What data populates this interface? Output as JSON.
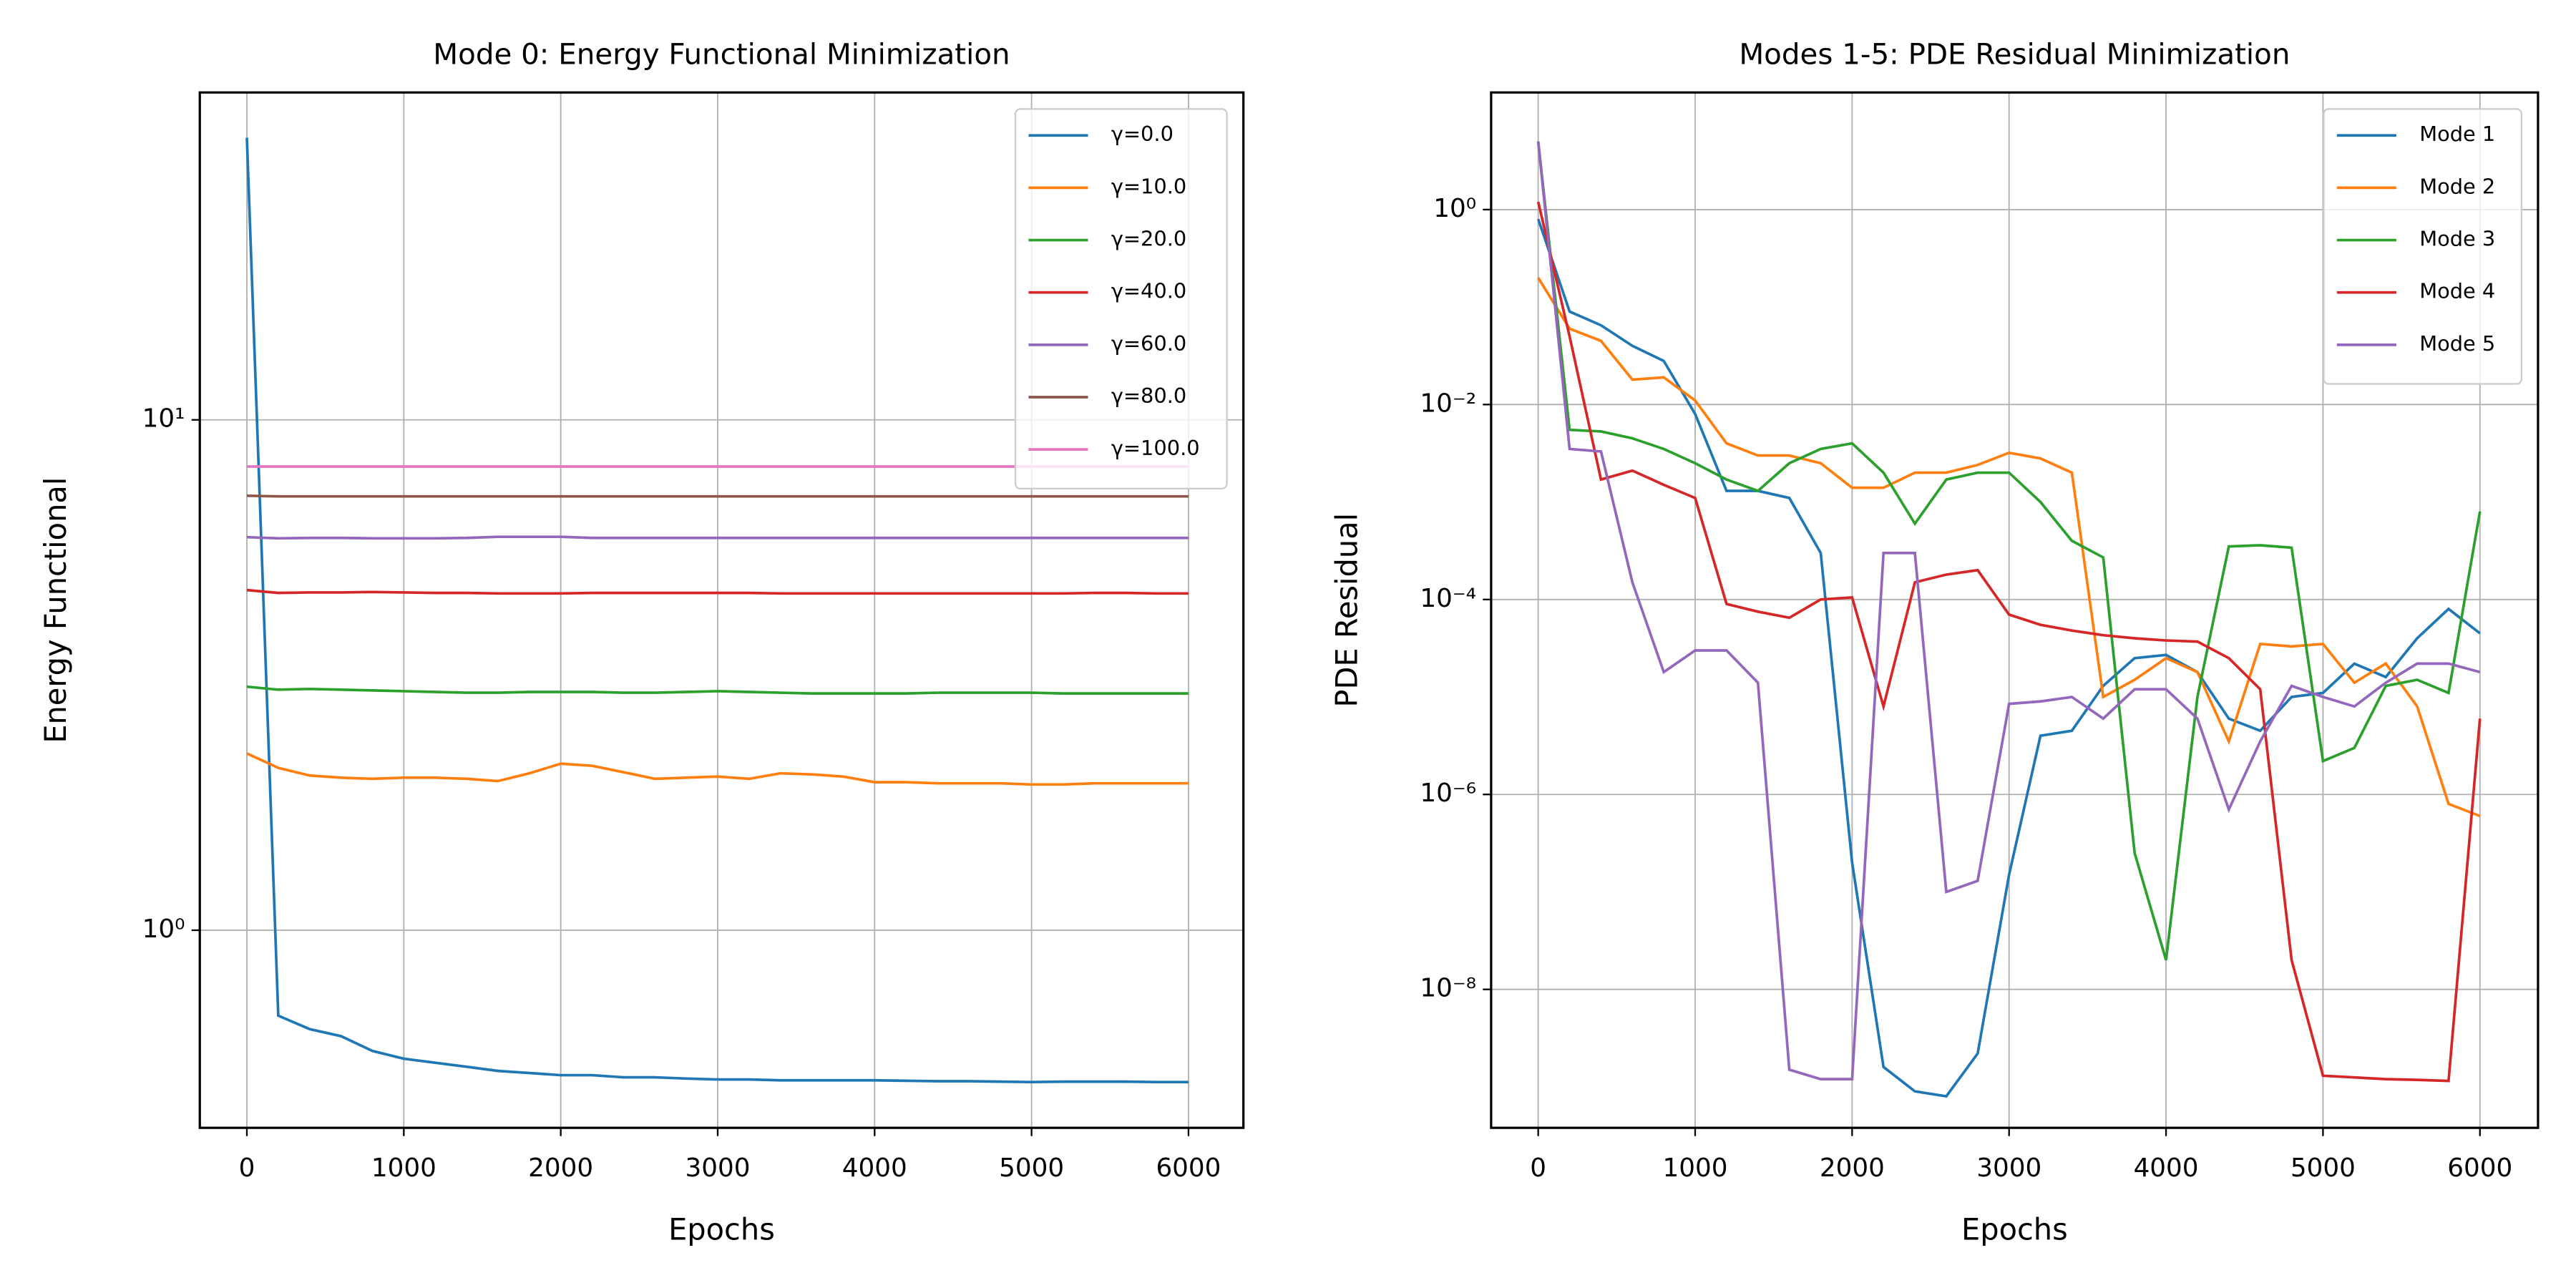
{
  "chart_data": [
    {
      "type": "line",
      "title": "Mode 0: Energy Functional Minimization",
      "xlabel": "Epochs",
      "ylabel": "Energy Functional",
      "log_y": true,
      "grid": true,
      "legend": "upper right",
      "xlim": [
        -300,
        6350
      ],
      "xticks": [
        0,
        1000,
        2000,
        3000,
        4000,
        5000,
        6000
      ],
      "ylim": [
        0.41,
        43.8
      ],
      "yticks": [
        {
          "value": 1,
          "label": "10⁰"
        },
        {
          "value": 10,
          "label": "10¹"
        }
      ],
      "x": [
        0,
        200,
        400,
        600,
        800,
        1000,
        1200,
        1400,
        1600,
        1800,
        2000,
        2200,
        2400,
        2600,
        2800,
        3000,
        3200,
        3400,
        3600,
        3800,
        4000,
        4200,
        4400,
        4600,
        4800,
        5000,
        5200,
        5400,
        5600,
        5800,
        6000
      ],
      "series": [
        {
          "name": "γ=0.0",
          "color": "#1f77b4",
          "values": [
            35.7,
            0.68,
            0.64,
            0.62,
            0.58,
            0.56,
            0.55,
            0.54,
            0.53,
            0.525,
            0.52,
            0.52,
            0.515,
            0.515,
            0.512,
            0.51,
            0.51,
            0.508,
            0.508,
            0.508,
            0.508,
            0.507,
            0.506,
            0.506,
            0.505,
            0.504,
            0.505,
            0.505,
            0.505,
            0.504,
            0.504
          ]
        },
        {
          "name": "γ=10.0",
          "color": "#ff7f0e",
          "values": [
            2.22,
            2.08,
            2.01,
            1.99,
            1.98,
            1.99,
            1.99,
            1.98,
            1.96,
            2.03,
            2.12,
            2.1,
            2.04,
            1.98,
            1.99,
            2.0,
            1.98,
            2.03,
            2.02,
            2.0,
            1.95,
            1.95,
            1.94,
            1.94,
            1.94,
            1.93,
            1.93,
            1.94,
            1.94,
            1.94,
            1.94
          ]
        },
        {
          "name": "γ=20.0",
          "color": "#2ca02c",
          "values": [
            3.0,
            2.96,
            2.97,
            2.96,
            2.95,
            2.94,
            2.93,
            2.92,
            2.92,
            2.93,
            2.93,
            2.93,
            2.92,
            2.92,
            2.93,
            2.94,
            2.93,
            2.92,
            2.91,
            2.91,
            2.91,
            2.91,
            2.92,
            2.92,
            2.92,
            2.92,
            2.91,
            2.91,
            2.91,
            2.91,
            2.91
          ]
        },
        {
          "name": "γ=40.0",
          "color": "#d62728",
          "values": [
            4.64,
            4.58,
            4.59,
            4.59,
            4.6,
            4.59,
            4.58,
            4.58,
            4.57,
            4.57,
            4.57,
            4.58,
            4.58,
            4.58,
            4.58,
            4.58,
            4.58,
            4.57,
            4.57,
            4.57,
            4.57,
            4.57,
            4.57,
            4.57,
            4.57,
            4.57,
            4.57,
            4.58,
            4.58,
            4.57,
            4.57
          ]
        },
        {
          "name": "γ=60.0",
          "color": "#9467bd",
          "values": [
            5.89,
            5.86,
            5.87,
            5.87,
            5.86,
            5.86,
            5.86,
            5.87,
            5.9,
            5.9,
            5.9,
            5.87,
            5.87,
            5.87,
            5.87,
            5.87,
            5.87,
            5.87,
            5.87,
            5.87,
            5.87,
            5.87,
            5.87,
            5.87,
            5.87,
            5.87,
            5.87,
            5.87,
            5.87,
            5.87,
            5.87
          ]
        },
        {
          "name": "γ=80.0",
          "color": "#8c564b",
          "values": [
            7.1,
            7.08,
            7.08,
            7.08,
            7.08,
            7.08,
            7.08,
            7.08,
            7.08,
            7.08,
            7.08,
            7.08,
            7.08,
            7.08,
            7.08,
            7.08,
            7.08,
            7.08,
            7.08,
            7.08,
            7.08,
            7.08,
            7.08,
            7.08,
            7.08,
            7.08,
            7.08,
            7.08,
            7.08,
            7.08,
            7.08
          ]
        },
        {
          "name": "γ=100.0",
          "color": "#e377c2",
          "values": [
            8.1,
            8.1,
            8.1,
            8.1,
            8.1,
            8.1,
            8.1,
            8.1,
            8.1,
            8.1,
            8.1,
            8.1,
            8.1,
            8.1,
            8.1,
            8.1,
            8.1,
            8.1,
            8.1,
            8.1,
            8.1,
            8.1,
            8.1,
            8.1,
            8.1,
            8.1,
            8.1,
            8.1,
            8.1,
            8.1,
            8.1
          ]
        }
      ]
    },
    {
      "type": "line",
      "title": "Modes 1-5: PDE Residual Minimization",
      "xlabel": "Epochs",
      "ylabel": "PDE Residual",
      "log_y": true,
      "grid": true,
      "legend": "upper right",
      "xlim": [
        -300,
        6370
      ],
      "xticks": [
        0,
        1000,
        2000,
        3000,
        4000,
        5000,
        6000
      ],
      "ylim": [
        3.8e-10,
        15.9
      ],
      "yticks": [
        {
          "value": 1e-08,
          "label": "10⁻⁸"
        },
        {
          "value": 1e-06,
          "label": "10⁻⁶"
        },
        {
          "value": 0.0001,
          "label": "10⁻⁴"
        },
        {
          "value": 0.01,
          "label": "10⁻²"
        },
        {
          "value": 1,
          "label": "10⁰"
        }
      ],
      "x": [
        0,
        200,
        400,
        600,
        800,
        1000,
        1200,
        1400,
        1600,
        1800,
        2000,
        2200,
        2400,
        2600,
        2800,
        3000,
        3200,
        3400,
        3600,
        3800,
        4000,
        4200,
        4400,
        4600,
        4800,
        5000,
        5200,
        5400,
        5600,
        5800,
        6000
      ],
      "series": [
        {
          "name": "Mode 1",
          "color": "#1f77b4",
          "values": [
            0.8,
            0.09,
            0.065,
            0.04,
            0.028,
            0.008,
            0.0013,
            0.0013,
            0.0011,
            0.0003,
            2e-07,
            1.6e-09,
            9e-10,
            8e-10,
            2.2e-09,
            1.5e-07,
            4e-06,
            4.5e-06,
            1.3e-05,
            2.5e-05,
            2.7e-05,
            1.8e-05,
            6e-06,
            4.5e-06,
            1e-05,
            1.1e-05,
            2.2e-05,
            1.6e-05,
            4e-05,
            8e-05,
            4.5e-05
          ]
        },
        {
          "name": "Mode 2",
          "color": "#ff7f0e",
          "values": [
            0.2,
            0.06,
            0.045,
            0.018,
            0.019,
            0.011,
            0.004,
            0.003,
            0.003,
            0.0025,
            0.0014,
            0.0014,
            0.002,
            0.002,
            0.0024,
            0.0032,
            0.0028,
            0.002,
            1e-05,
            1.5e-05,
            2.5e-05,
            1.8e-05,
            3.5e-06,
            3.5e-05,
            3.3e-05,
            3.5e-05,
            1.4e-05,
            2.2e-05,
            8e-06,
            8e-07,
            6e-07
          ]
        },
        {
          "name": "Mode 3",
          "color": "#2ca02c",
          "values": [
            5,
            0.0055,
            0.0053,
            0.0045,
            0.0035,
            0.0025,
            0.0017,
            0.0013,
            0.0025,
            0.0035,
            0.004,
            0.002,
            0.0006,
            0.0017,
            0.002,
            0.002,
            0.001,
            0.0004,
            0.00027,
            2.5e-07,
            2e-08,
            1e-05,
            0.00035,
            0.00036,
            0.00034,
            2.2e-06,
            3e-06,
            1.3e-05,
            1.5e-05,
            1.1e-05,
            0.0008
          ]
        },
        {
          "name": "Mode 4",
          "color": "#d62728",
          "values": [
            1.2,
            0.05,
            0.0017,
            0.0021,
            0.0015,
            0.0011,
            9e-05,
            7.5e-05,
            6.5e-05,
            0.0001,
            0.000105,
            8e-06,
            0.00015,
            0.00018,
            0.0002,
            7e-05,
            5.5e-05,
            4.8e-05,
            4.3e-05,
            4e-05,
            3.8e-05,
            3.7e-05,
            2.5e-05,
            1.2e-05,
            2e-08,
            1.3e-09,
            1.25e-09,
            1.2e-09,
            1.18e-09,
            1.15e-09,
            6e-06
          ]
        },
        {
          "name": "Mode 5",
          "color": "#9467bd",
          "values": [
            5,
            0.0035,
            0.0033,
            0.00015,
            1.8e-05,
            3e-05,
            3e-05,
            1.4e-05,
            1.5e-09,
            1.2e-09,
            1.2e-09,
            0.0003,
            0.0003,
            1e-07,
            1.3e-07,
            8.5e-06,
            9e-06,
            1e-05,
            6e-06,
            1.2e-05,
            1.2e-05,
            6e-06,
            7e-07,
            3.5e-06,
            1.3e-05,
            1e-05,
            8e-06,
            1.4e-05,
            2.2e-05,
            2.2e-05,
            1.8e-05
          ]
        }
      ]
    }
  ]
}
